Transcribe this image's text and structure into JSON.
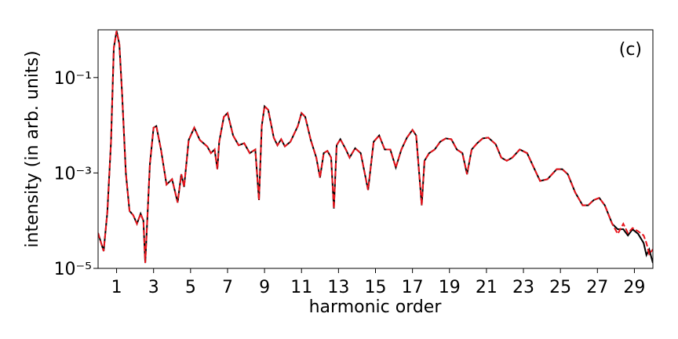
{
  "chart_data": {
    "type": "line",
    "xlabel": "harmonic order",
    "ylabel": "intensity (in arb. units)",
    "annotation": "(c)",
    "log_y": true,
    "grid": false,
    "xlim": [
      0,
      30
    ],
    "ylim": [
      1e-05,
      1
    ],
    "xticks": [
      1,
      3,
      5,
      7,
      9,
      11,
      13,
      15,
      17,
      19,
      21,
      23,
      25,
      27,
      29
    ],
    "yticks": [
      {
        "value": 0.1,
        "label": "10⁻¹"
      },
      {
        "value": 0.001,
        "label": "10⁻³"
      },
      {
        "value": 1e-05,
        "label": "10⁻⁵"
      }
    ],
    "x": [
      0,
      0.3,
      0.5,
      0.7,
      0.85,
      1.0,
      1.15,
      1.3,
      1.5,
      1.7,
      1.9,
      2.1,
      2.3,
      2.45,
      2.55,
      2.7,
      2.8,
      3.0,
      3.15,
      3.4,
      3.7,
      4.0,
      4.3,
      4.5,
      4.65,
      4.9,
      5.2,
      5.5,
      5.9,
      6.1,
      6.3,
      6.45,
      6.55,
      6.8,
      7.0,
      7.3,
      7.6,
      7.9,
      8.2,
      8.5,
      8.7,
      8.85,
      9.0,
      9.2,
      9.5,
      9.7,
      9.9,
      10.1,
      10.4,
      10.8,
      11.0,
      11.2,
      11.5,
      11.8,
      12.0,
      12.2,
      12.4,
      12.6,
      12.75,
      12.9,
      13.1,
      13.4,
      13.6,
      13.9,
      14.2,
      14.6,
      14.9,
      15.2,
      15.5,
      15.8,
      16.1,
      16.4,
      16.7,
      17.0,
      17.2,
      17.5,
      17.65,
      17.9,
      18.2,
      18.5,
      18.8,
      19.1,
      19.4,
      19.7,
      19.95,
      20.2,
      20.5,
      20.8,
      21.1,
      21.5,
      21.8,
      22.1,
      22.4,
      22.8,
      23.2,
      23.6,
      23.9,
      24.3,
      24.8,
      25.1,
      25.4,
      25.8,
      26.2,
      26.5,
      26.8,
      27.1,
      27.4,
      27.8,
      28.1,
      28.4,
      28.65,
      28.9,
      29.2,
      29.5,
      29.65,
      29.8,
      30
    ],
    "series": [
      {
        "color": "#000000",
        "linestyle": "solid",
        "values": [
          5.5e-05,
          2.3e-05,
          0.00015,
          0.0046,
          0.42,
          0.95,
          0.5,
          0.044,
          0.001,
          0.00016,
          0.00013,
          8.6e-05,
          0.00014,
          0.0001,
          1.3e-05,
          0.00022,
          0.0015,
          0.0089,
          0.0096,
          0.0031,
          0.00057,
          0.00074,
          0.00024,
          0.00094,
          0.00051,
          0.0049,
          0.0089,
          0.0049,
          0.0036,
          0.0026,
          0.0031,
          0.0012,
          0.0045,
          0.015,
          0.018,
          0.0061,
          0.0038,
          0.0042,
          0.0026,
          0.0031,
          0.00027,
          0.0096,
          0.025,
          0.021,
          0.0055,
          0.0038,
          0.0051,
          0.0036,
          0.0045,
          0.0096,
          0.018,
          0.015,
          0.0049,
          0.0021,
          0.0008,
          0.0026,
          0.0029,
          0.0021,
          0.00018,
          0.0038,
          0.0051,
          0.0031,
          0.0021,
          0.0033,
          0.0026,
          0.00044,
          0.0045,
          0.0061,
          0.0031,
          0.0031,
          0.0013,
          0.0031,
          0.0055,
          0.008,
          0.0061,
          0.00021,
          0.0018,
          0.0026,
          0.0031,
          0.0045,
          0.0053,
          0.0051,
          0.0031,
          0.0026,
          0.00094,
          0.0031,
          0.0042,
          0.0053,
          0.0055,
          0.004,
          0.0021,
          0.0018,
          0.0021,
          0.0031,
          0.0026,
          0.0012,
          0.00068,
          0.00074,
          0.0012,
          0.0012,
          0.00094,
          0.00039,
          0.00021,
          0.00021,
          0.00027,
          0.0003,
          0.00021,
          8.6e-05,
          6.6e-05,
          6.6e-05,
          4.9e-05,
          6.6e-05,
          5.3e-05,
          3.4e-05,
          1.9e-05,
          2.5e-05,
          1.3e-05
        ]
      },
      {
        "color": "#e8141c",
        "linestyle": "dashed",
        "values": [
          5.5e-05,
          2.3e-05,
          0.00015,
          0.0046,
          0.42,
          0.95,
          0.5,
          0.044,
          0.001,
          0.00016,
          0.00013,
          8.6e-05,
          0.00014,
          0.0001,
          1.3e-05,
          0.00022,
          0.0015,
          0.0089,
          0.0096,
          0.0031,
          0.00057,
          0.00074,
          0.00024,
          0.00094,
          0.00051,
          0.0049,
          0.0089,
          0.0049,
          0.0036,
          0.0026,
          0.0031,
          0.0012,
          0.0045,
          0.015,
          0.018,
          0.0061,
          0.0038,
          0.0042,
          0.0026,
          0.0031,
          0.00027,
          0.0096,
          0.025,
          0.021,
          0.0055,
          0.0038,
          0.0051,
          0.0036,
          0.0045,
          0.0096,
          0.018,
          0.015,
          0.0049,
          0.0021,
          0.0008,
          0.0026,
          0.0029,
          0.0021,
          0.00018,
          0.0038,
          0.0051,
          0.0031,
          0.0021,
          0.0033,
          0.0026,
          0.00044,
          0.0045,
          0.0061,
          0.0031,
          0.0031,
          0.0013,
          0.0031,
          0.0055,
          0.008,
          0.0061,
          0.00021,
          0.0018,
          0.0026,
          0.0031,
          0.0045,
          0.0053,
          0.0051,
          0.0031,
          0.0026,
          0.00094,
          0.0031,
          0.0042,
          0.0053,
          0.0055,
          0.004,
          0.0021,
          0.0018,
          0.0021,
          0.0031,
          0.0026,
          0.0012,
          0.00068,
          0.00074,
          0.0012,
          0.0012,
          0.00094,
          0.00039,
          0.00021,
          0.00021,
          0.00027,
          0.0003,
          0.00021,
          8.6e-05,
          5.3e-05,
          8.6e-05,
          5.5e-05,
          7e-05,
          6e-05,
          4.9e-05,
          3.4e-05,
          2e-05,
          2.5e-05
        ]
      }
    ]
  }
}
